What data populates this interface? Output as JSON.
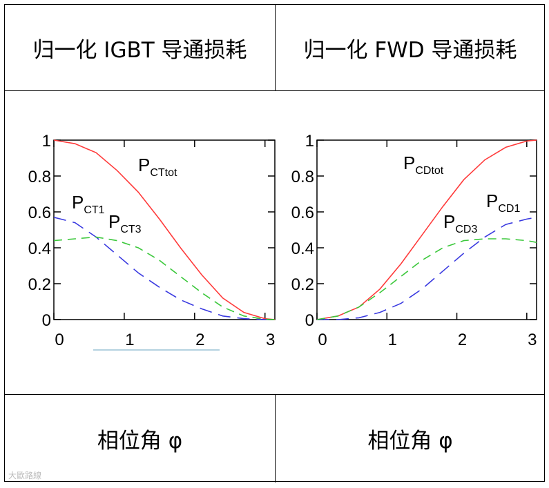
{
  "table": {
    "header_left": "归一化 IGBT 导通损耗",
    "header_right": "归一化 FWD 导通损耗",
    "footer_left": "相位角 φ",
    "footer_right": "相位角 φ"
  },
  "watermark": "大歐路線",
  "colors": {
    "red": "#ff3b3b",
    "green": "#3cc83c",
    "blue": "#3a3ae0"
  },
  "chart_data": [
    {
      "type": "line",
      "xlim": [
        0,
        3.14
      ],
      "ylim": [
        0,
        1
      ],
      "x_ticks": [
        "0",
        "1",
        "2",
        "3"
      ],
      "y_ticks": [
        "0",
        "0.2",
        "0.4",
        "0.6",
        "0.8",
        "1"
      ],
      "series": [
        {
          "name": "P_CTtot",
          "label_main": "P",
          "label_sub": "CTtot",
          "color": "red",
          "dash": "solid",
          "x": [
            0,
            0.3,
            0.6,
            0.9,
            1.2,
            1.5,
            1.8,
            2.1,
            2.4,
            2.7,
            3.0,
            3.14
          ],
          "y": [
            1.0,
            0.98,
            0.93,
            0.83,
            0.71,
            0.56,
            0.4,
            0.25,
            0.12,
            0.04,
            0.005,
            0
          ]
        },
        {
          "name": "P_CT1",
          "label_main": "P",
          "label_sub": "CT1",
          "color": "blue",
          "dash": "long",
          "x": [
            0,
            0.3,
            0.6,
            0.9,
            1.2,
            1.5,
            1.8,
            2.1,
            2.4,
            2.7,
            3.0,
            3.14
          ],
          "y": [
            0.57,
            0.54,
            0.46,
            0.36,
            0.26,
            0.18,
            0.11,
            0.06,
            0.02,
            0.005,
            0,
            0
          ]
        },
        {
          "name": "P_CT3",
          "label_main": "P",
          "label_sub": "CT3",
          "color": "green",
          "dash": "dash",
          "x": [
            0,
            0.3,
            0.6,
            0.9,
            1.2,
            1.5,
            1.8,
            2.1,
            2.4,
            2.7,
            3.0,
            3.14
          ],
          "y": [
            0.44,
            0.45,
            0.46,
            0.44,
            0.4,
            0.33,
            0.24,
            0.15,
            0.07,
            0.02,
            0.002,
            0
          ]
        }
      ]
    },
    {
      "type": "line",
      "xlim": [
        0,
        3.14
      ],
      "ylim": [
        0,
        1
      ],
      "x_ticks": [
        "0",
        "1",
        "2",
        "3"
      ],
      "y_ticks": [
        "0",
        "0.2",
        "0.4",
        "0.6",
        "0.8",
        "1"
      ],
      "series": [
        {
          "name": "P_CDtot",
          "label_main": "P",
          "label_sub": "CDtot",
          "color": "red",
          "dash": "solid",
          "x": [
            0,
            0.3,
            0.6,
            0.9,
            1.2,
            1.5,
            1.8,
            2.1,
            2.4,
            2.7,
            3.0,
            3.14
          ],
          "y": [
            0,
            0.02,
            0.07,
            0.17,
            0.31,
            0.47,
            0.63,
            0.78,
            0.89,
            0.96,
            0.995,
            1.0
          ]
        },
        {
          "name": "P_CD1",
          "label_main": "P",
          "label_sub": "CD1",
          "color": "blue",
          "dash": "long",
          "x": [
            0,
            0.3,
            0.6,
            0.9,
            1.2,
            1.5,
            1.8,
            2.1,
            2.4,
            2.7,
            3.0,
            3.14
          ],
          "y": [
            0,
            0,
            0.01,
            0.04,
            0.09,
            0.17,
            0.27,
            0.37,
            0.46,
            0.53,
            0.56,
            0.57
          ]
        },
        {
          "name": "P_CD3",
          "label_main": "P",
          "label_sub": "CD3",
          "color": "green",
          "dash": "dash",
          "x": [
            0,
            0.3,
            0.6,
            0.9,
            1.2,
            1.5,
            1.8,
            2.1,
            2.4,
            2.7,
            3.0,
            3.14
          ],
          "y": [
            0,
            0.02,
            0.07,
            0.15,
            0.24,
            0.33,
            0.4,
            0.44,
            0.45,
            0.45,
            0.44,
            0.43
          ]
        }
      ]
    }
  ]
}
